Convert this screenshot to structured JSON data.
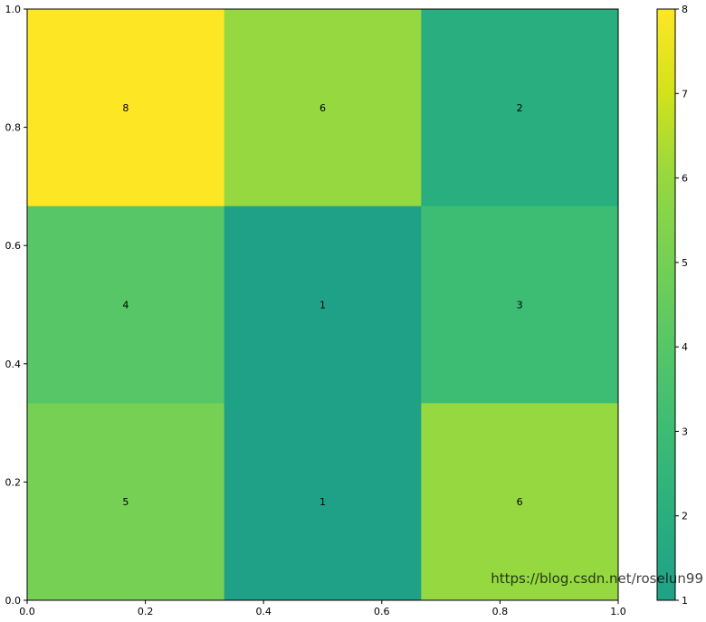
{
  "chart_data": {
    "type": "heatmap",
    "title": "",
    "xlabel": "",
    "ylabel": "",
    "xlim": [
      0,
      1
    ],
    "ylim": [
      0,
      1
    ],
    "grid": false,
    "rows_top_to_bottom": [
      [
        8,
        6,
        2
      ],
      [
        4,
        1,
        3
      ],
      [
        5,
        1,
        6
      ]
    ],
    "x_ticks": [
      "0.0",
      "0.2",
      "0.4",
      "0.6",
      "0.8",
      "1.0"
    ],
    "y_ticks": [
      "0.0",
      "0.2",
      "0.4",
      "0.6",
      "0.8",
      "1.0"
    ],
    "colorbar": {
      "range": [
        1,
        8
      ],
      "ticks": [
        "1",
        "2",
        "3",
        "4",
        "5",
        "6",
        "7",
        "8"
      ],
      "colormap": "viridis (upper range)",
      "color_stops": [
        {
          "v": 1,
          "color": "#1fa187"
        },
        {
          "v": 2,
          "color": "#29af7f"
        },
        {
          "v": 3,
          "color": "#3dbc74"
        },
        {
          "v": 4,
          "color": "#56c667"
        },
        {
          "v": 5,
          "color": "#75d054"
        },
        {
          "v": 6,
          "color": "#95d840"
        },
        {
          "v": 7,
          "color": "#d2e21b"
        },
        {
          "v": 8,
          "color": "#fde725"
        }
      ]
    },
    "watermark": "https://blog.csdn.net/roselun99"
  }
}
